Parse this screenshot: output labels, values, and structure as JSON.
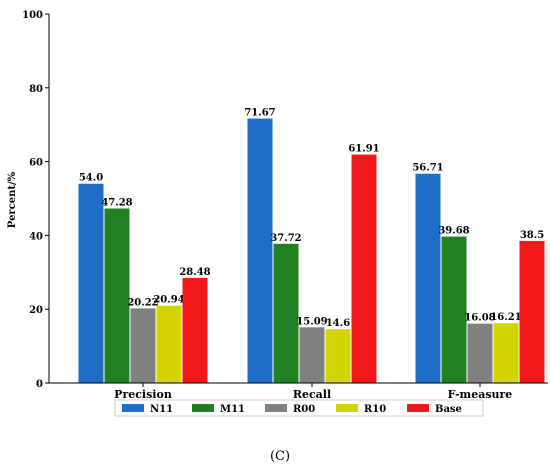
{
  "chart_data": {
    "type": "bar",
    "categories": [
      "Precision",
      "Recall",
      "F-measure"
    ],
    "series": [
      {
        "name": "N11",
        "color": "#1f6fc8",
        "values": [
          54.0,
          71.67,
          56.71
        ],
        "labels": [
          "54.0",
          "71.67",
          "56.71"
        ]
      },
      {
        "name": "M11",
        "color": "#218021",
        "values": [
          47.28,
          37.72,
          39.68
        ],
        "labels": [
          "47.28",
          "37.72",
          "39.68"
        ]
      },
      {
        "name": "R00",
        "color": "#808080",
        "values": [
          20.22,
          15.09,
          16.08
        ],
        "labels": [
          "20.22",
          "15.09",
          "16.08"
        ]
      },
      {
        "name": "R10",
        "color": "#d4d400",
        "values": [
          20.94,
          14.6,
          16.21
        ],
        "labels": [
          "20.94",
          "14.6",
          "16.21"
        ]
      },
      {
        "name": "Base",
        "color": "#f01818",
        "values": [
          28.48,
          61.91,
          38.5
        ],
        "labels": [
          "28.48",
          "61.91",
          "38.5"
        ]
      }
    ],
    "ylabel": "Percent/%",
    "ylim": [
      0,
      100
    ],
    "yticks": [
      0,
      20,
      40,
      60,
      80,
      100
    ],
    "grid": false,
    "legend_position": "bottom-center"
  },
  "caption": "(C)"
}
